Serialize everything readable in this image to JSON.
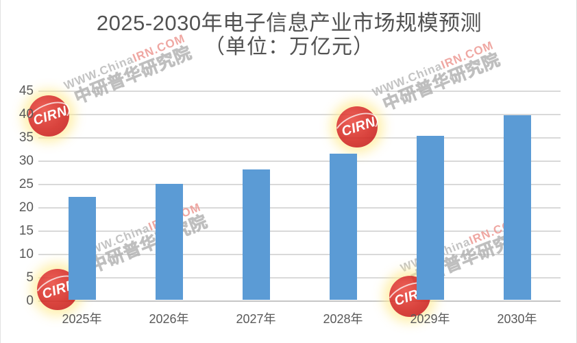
{
  "title": {
    "line1": "2025-2030年电子信息产业市场规模预测",
    "line2": "（单位：万亿元）"
  },
  "chart_data": {
    "type": "bar",
    "title": "2025-2030年电子信息产业市场规模预测",
    "subtitle": "（单位：万亿元）",
    "unit": "万亿元",
    "categories": [
      "2025年",
      "2026年",
      "2027年",
      "2028年",
      "2029年",
      "2030年"
    ],
    "values": [
      22.1,
      24.8,
      27.9,
      31.3,
      35.1,
      39.5
    ],
    "ylim": [
      0,
      45
    ],
    "y_ticks": [
      0,
      5,
      10,
      15,
      20,
      25,
      30,
      35,
      40,
      45
    ],
    "grid": true,
    "legend": false,
    "bar_color": "#5b9bd5",
    "gridline_color": "#d9d9d9",
    "axis_label_color": "#595959",
    "title_color": "#525252"
  },
  "watermark": {
    "badge": "CIRN",
    "url_gray": "WWW.China",
    "url_red": "IRN.COM",
    "org": "中研普华研究院"
  }
}
